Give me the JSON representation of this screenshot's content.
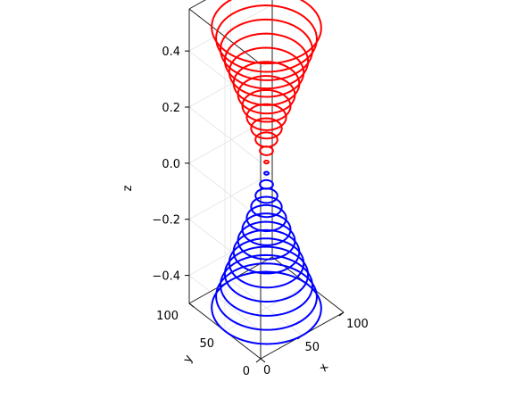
{
  "chart_data": {
    "type": "line",
    "projection": "3d",
    "title": "",
    "xlabel": "x",
    "ylabel": "y",
    "zlabel": "z",
    "xlim": [
      0,
      100
    ],
    "ylim": [
      0,
      100
    ],
    "zlim": [
      -0.5,
      0.55
    ],
    "xticks": [
      "0",
      "50",
      "100"
    ],
    "yticks": [
      "0",
      "50",
      "100"
    ],
    "zticks": [
      "−0.4",
      "−0.2",
      "0.0",
      "0.2",
      "0.4"
    ],
    "ztick_values": [
      -0.4,
      -0.2,
      0.0,
      0.2,
      0.4
    ],
    "grid": true,
    "center": [
      50,
      50
    ],
    "series": [
      {
        "color": "#ff0000",
        "rings": [
          {
            "z": 0.02,
            "r": 2
          },
          {
            "z": 0.06,
            "r": 6
          },
          {
            "z": 0.1,
            "r": 10
          },
          {
            "z": 0.14,
            "r": 14
          },
          {
            "z": 0.18,
            "r": 18
          },
          {
            "z": 0.22,
            "r": 22
          },
          {
            "z": 0.26,
            "r": 26
          },
          {
            "z": 0.3,
            "r": 30
          },
          {
            "z": 0.34,
            "r": 34
          },
          {
            "z": 0.38,
            "r": 38
          },
          {
            "z": 0.42,
            "r": 42
          },
          {
            "z": 0.46,
            "r": 46
          },
          {
            "z": 0.5,
            "r": 50
          }
        ]
      },
      {
        "color": "#0000ff",
        "rings": [
          {
            "z": -0.02,
            "r": 2
          },
          {
            "z": -0.06,
            "r": 6
          },
          {
            "z": -0.1,
            "r": 10
          },
          {
            "z": -0.14,
            "r": 14
          },
          {
            "z": -0.18,
            "r": 18
          },
          {
            "z": -0.22,
            "r": 22
          },
          {
            "z": -0.26,
            "r": 26
          },
          {
            "z": -0.3,
            "r": 30
          },
          {
            "z": -0.34,
            "r": 34
          },
          {
            "z": -0.38,
            "r": 38
          },
          {
            "z": -0.42,
            "r": 42
          },
          {
            "z": -0.46,
            "r": 46
          },
          {
            "z": -0.5,
            "r": 50
          }
        ]
      }
    ]
  }
}
